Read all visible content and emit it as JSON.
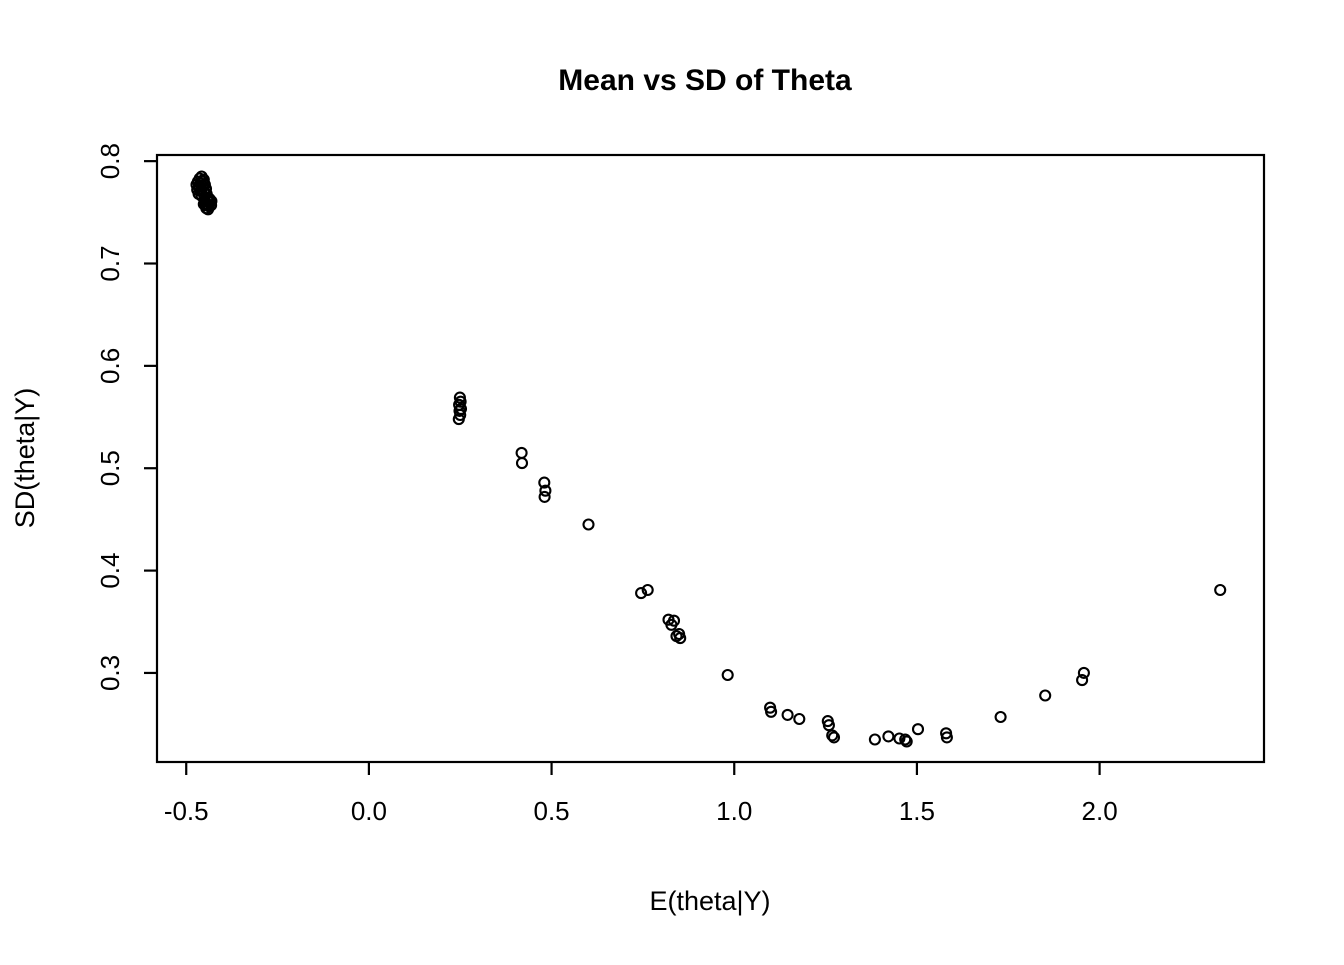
{
  "figure": {
    "title": "Mean vs SD of Theta",
    "background_color": "#ffffff",
    "foreground_color": "#000000"
  },
  "chart_data": {
    "type": "scatter",
    "title": "Mean vs SD of Theta",
    "xlabel": "E(theta|Y)",
    "ylabel": "SD(theta|Y)",
    "xlim": [
      -0.58,
      2.45
    ],
    "ylim": [
      0.213,
      0.806
    ],
    "x_ticks": [
      -0.5,
      0.0,
      0.5,
      1.0,
      1.5,
      2.0
    ],
    "x_tick_labels": [
      "-0.5",
      "0.0",
      "0.5",
      "1.0",
      "1.5",
      "2.0"
    ],
    "y_ticks": [
      0.3,
      0.4,
      0.5,
      0.6,
      0.7,
      0.8
    ],
    "y_tick_labels": [
      "0.3",
      "0.4",
      "0.5",
      "0.6",
      "0.7",
      "0.8"
    ],
    "grid": false,
    "legend": "none",
    "marker": "open-circle",
    "marker_color": "#000000",
    "box": true,
    "points": [
      [
        -0.468,
        0.78
      ],
      [
        -0.463,
        0.783
      ],
      [
        -0.458,
        0.785
      ],
      [
        -0.452,
        0.782
      ],
      [
        -0.465,
        0.776
      ],
      [
        -0.459,
        0.778
      ],
      [
        -0.454,
        0.775
      ],
      [
        -0.47,
        0.772
      ],
      [
        -0.461,
        0.771
      ],
      [
        -0.449,
        0.777
      ],
      [
        -0.455,
        0.78
      ],
      [
        -0.466,
        0.768
      ],
      [
        -0.458,
        0.766
      ],
      [
        -0.451,
        0.77
      ],
      [
        -0.446,
        0.773
      ],
      [
        -0.472,
        0.777
      ],
      [
        -0.45,
        0.765
      ],
      [
        -0.457,
        0.772
      ],
      [
        -0.444,
        0.768
      ],
      [
        -0.439,
        0.764
      ],
      [
        -0.435,
        0.76
      ],
      [
        -0.443,
        0.758
      ],
      [
        -0.449,
        0.761
      ],
      [
        -0.438,
        0.756
      ],
      [
        -0.432,
        0.757
      ],
      [
        -0.445,
        0.754
      ],
      [
        -0.44,
        0.753
      ],
      [
        -0.436,
        0.763
      ],
      [
        -0.431,
        0.761
      ],
      [
        -0.447,
        0.757
      ],
      [
        -0.442,
        0.762
      ],
      [
        -0.452,
        0.758
      ],
      [
        0.249,
        0.569
      ],
      [
        0.251,
        0.565
      ],
      [
        0.247,
        0.562
      ],
      [
        0.252,
        0.558
      ],
      [
        0.248,
        0.556
      ],
      [
        0.25,
        0.552
      ],
      [
        0.246,
        0.548
      ],
      [
        0.418,
        0.515
      ],
      [
        0.419,
        0.505
      ],
      [
        0.48,
        0.486
      ],
      [
        0.483,
        0.478
      ],
      [
        0.481,
        0.472
      ],
      [
        0.601,
        0.445
      ],
      [
        0.745,
        0.378
      ],
      [
        0.763,
        0.381
      ],
      [
        0.82,
        0.352
      ],
      [
        0.835,
        0.351
      ],
      [
        0.828,
        0.347
      ],
      [
        0.842,
        0.336
      ],
      [
        0.849,
        0.338
      ],
      [
        0.852,
        0.334
      ],
      [
        0.982,
        0.298
      ],
      [
        1.098,
        0.266
      ],
      [
        1.101,
        0.262
      ],
      [
        1.146,
        0.259
      ],
      [
        1.178,
        0.255
      ],
      [
        1.256,
        0.253
      ],
      [
        1.259,
        0.249
      ],
      [
        1.268,
        0.239
      ],
      [
        1.273,
        0.237
      ],
      [
        1.385,
        0.235
      ],
      [
        1.422,
        0.238
      ],
      [
        1.452,
        0.236
      ],
      [
        1.468,
        0.235
      ],
      [
        1.472,
        0.233
      ],
      [
        1.503,
        0.245
      ],
      [
        1.58,
        0.241
      ],
      [
        1.582,
        0.237
      ],
      [
        1.729,
        0.257
      ],
      [
        1.851,
        0.278
      ],
      [
        1.952,
        0.293
      ],
      [
        1.957,
        0.3
      ],
      [
        2.33,
        0.381
      ]
    ]
  }
}
